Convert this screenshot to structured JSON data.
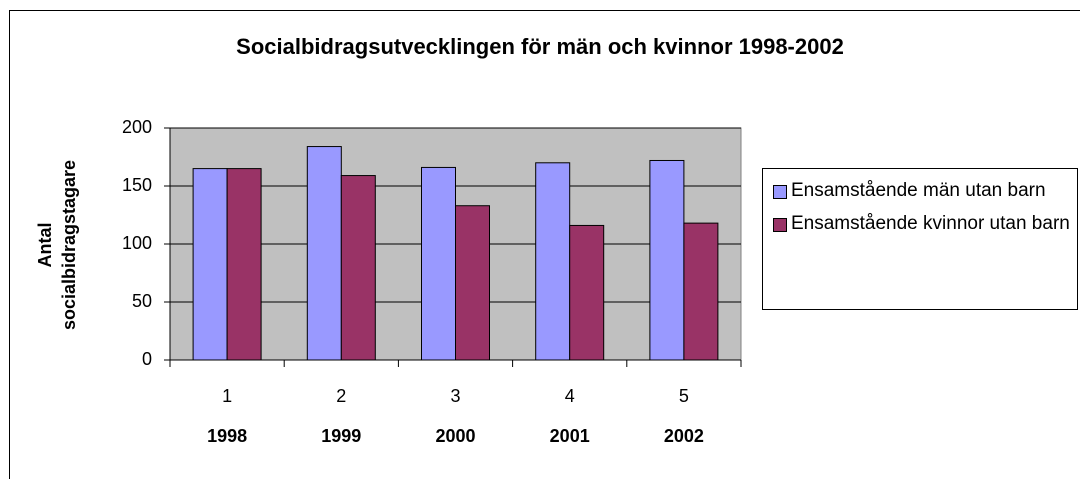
{
  "chart_data": {
    "type": "bar",
    "title": "Socialbidragsutvecklingen för män och kvinnor 1998-2002",
    "ylabel": [
      "Antal",
      "socialbidragstagare"
    ],
    "categories": [
      "1",
      "2",
      "3",
      "4",
      "5"
    ],
    "category_years": [
      "1998",
      "1999",
      "2000",
      "2001",
      "2002"
    ],
    "series": [
      {
        "name": "Ensamstående män utan barn",
        "color": "#9999ff",
        "values": [
          165,
          184,
          166,
          170,
          172
        ]
      },
      {
        "name": "Ensamstående kvinnor utan barn",
        "color": "#993366",
        "values": [
          165,
          159,
          133,
          116,
          118
        ]
      }
    ],
    "ylim": [
      0,
      200
    ],
    "yticks": [
      0,
      50,
      100,
      150,
      200
    ],
    "grid": true,
    "legend": "right"
  }
}
